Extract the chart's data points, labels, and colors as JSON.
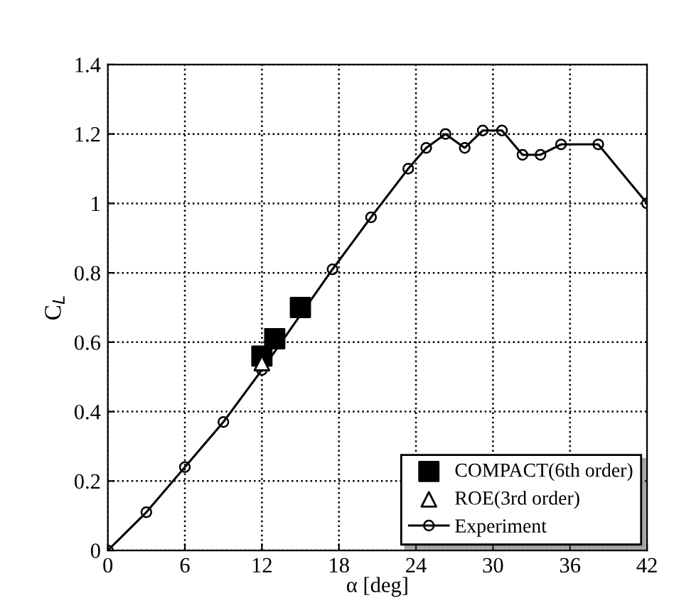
{
  "chart_data": {
    "type": "line",
    "xlabel": "α [deg]",
    "ylabel": "C$_{L}$",
    "xlim": [
      0,
      42
    ],
    "xticks": [
      0,
      6,
      12,
      18,
      24,
      30,
      36,
      42
    ],
    "ylim": [
      0,
      1.4
    ],
    "yticks": [
      0,
      0.2,
      0.4,
      0.6,
      0.8,
      1,
      1.2,
      1.4
    ],
    "grid": true,
    "legend": "bottom right",
    "series": [
      {
        "name": "COMPACT(6th order)",
        "type": "scatter",
        "marker": "square",
        "color": "#000000",
        "x": [
          12.0,
          13.0,
          15.0
        ],
        "values": [
          0.56,
          0.61,
          0.7
        ]
      },
      {
        "name": "ROE(3rd order)",
        "type": "scatter",
        "marker": "triangle",
        "color": "#000000",
        "x": [
          12.0
        ],
        "values": [
          0.54
        ]
      },
      {
        "name": "Experiment",
        "marker": "circle",
        "line_style": "solid",
        "color": "#000000",
        "x": [
          0,
          3.0,
          6.0,
          9.0,
          12.0,
          17.5,
          20.5,
          23.4,
          24.8,
          26.3,
          27.8,
          29.2,
          30.7,
          32.3,
          33.7,
          35.3,
          38.2,
          42
        ],
        "values": [
          0,
          0.11,
          0.24,
          0.37,
          0.52,
          0.81,
          0.96,
          1.1,
          1.16,
          1.2,
          1.16,
          1.21,
          1.21,
          1.14,
          1.14,
          1.17,
          1.17,
          1.0
        ]
      }
    ]
  }
}
